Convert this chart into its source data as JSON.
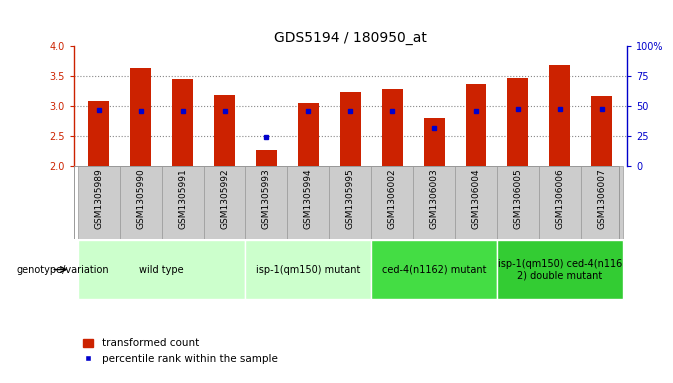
{
  "title": "GDS5194 / 180950_at",
  "samples": [
    "GSM1305989",
    "GSM1305990",
    "GSM1305991",
    "GSM1305992",
    "GSM1305993",
    "GSM1305994",
    "GSM1305995",
    "GSM1306002",
    "GSM1306003",
    "GSM1306004",
    "GSM1306005",
    "GSM1306006",
    "GSM1306007"
  ],
  "transformed_count": [
    3.08,
    3.63,
    3.46,
    3.19,
    2.27,
    3.06,
    3.24,
    3.29,
    2.81,
    3.37,
    3.47,
    3.69,
    3.17
  ],
  "percentile_rank": [
    47,
    46,
    46,
    46,
    24,
    46,
    46,
    46,
    32,
    46,
    48,
    48,
    48
  ],
  "ylim_left": [
    2,
    4
  ],
  "ylim_right": [
    0,
    100
  ],
  "bar_color": "#cc2200",
  "dot_color": "#0000cc",
  "bar_width": 0.5,
  "groups": [
    {
      "label": "wild type",
      "indices": [
        0,
        1,
        2,
        3
      ],
      "color": "#ccffcc"
    },
    {
      "label": "isp-1(qm150) mutant",
      "indices": [
        4,
        5,
        6
      ],
      "color": "#ccffcc"
    },
    {
      "label": "ced-4(n1162) mutant",
      "indices": [
        7,
        8,
        9
      ],
      "color": "#44dd44"
    },
    {
      "label": "isp-1(qm150) ced-4(n116\n2) double mutant",
      "indices": [
        10,
        11,
        12
      ],
      "color": "#22cc22"
    }
  ],
  "xlabel_area_bg": "#cccccc",
  "xlabel_area_border": "#999999",
  "legend_dot_label": "percentile rank within the sample",
  "legend_bar_label": "transformed count",
  "genotype_label": "genotype/variation",
  "dotted_line_color": "#888888",
  "right_axis_color": "#0000cc",
  "left_axis_color": "#cc2200",
  "title_fontsize": 10,
  "tick_fontsize": 7,
  "label_fontsize": 6.5,
  "group_label_fontsize": 7,
  "legend_fontsize": 7.5,
  "background_color": "#ffffff"
}
